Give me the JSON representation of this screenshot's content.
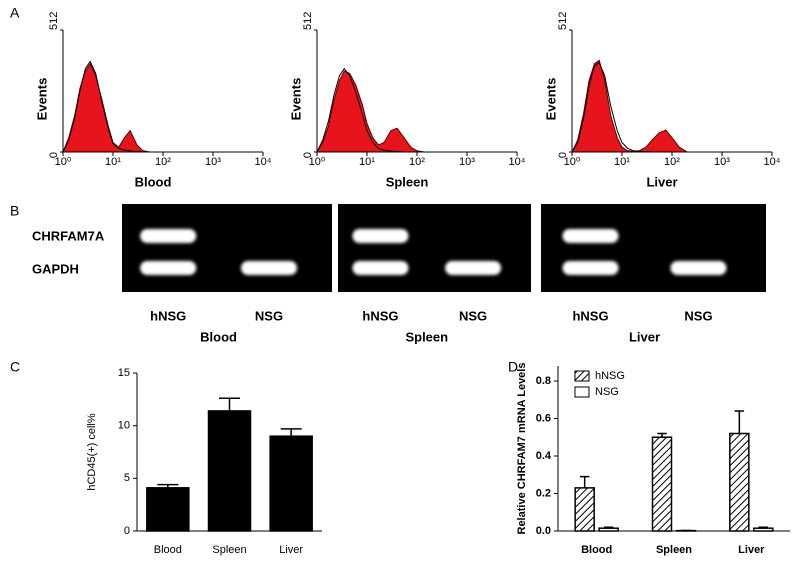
{
  "panel_labels": [
    "A",
    "B",
    "C",
    "D"
  ],
  "gel": {
    "rows": [
      "CHRFAM7A",
      "GAPDH"
    ],
    "panels": [
      {
        "tissue": "Blood",
        "lanes": [
          "hNSG",
          "NSG"
        ]
      },
      {
        "tissue": "Spleen",
        "lanes": [
          "hNSG",
          "NSG"
        ]
      },
      {
        "tissue": "Liver",
        "lanes": [
          "hNSG",
          "NSG"
        ]
      }
    ]
  },
  "chart_data": [
    {
      "type": "area",
      "xlabel": "Blood",
      "ylabel": "Events",
      "log_x": true,
      "x": [
        1,
        1.3,
        1.7,
        2.2,
        2.8,
        3.5,
        4.5,
        6,
        8,
        10,
        13,
        17,
        22,
        30,
        40,
        55,
        75,
        100,
        140,
        200
      ],
      "series": [
        {
          "color": "#5a0000",
          "fill": "#e8141b",
          "values": [
            0,
            60,
            150,
            270,
            340,
            370,
            320,
            220,
            110,
            40,
            20,
            60,
            90,
            30,
            5,
            0,
            0,
            0,
            0,
            0
          ]
        },
        {
          "color": "#000000",
          "fill": "none",
          "values": [
            0,
            50,
            140,
            260,
            350,
            380,
            330,
            210,
            100,
            35,
            15,
            8,
            4,
            2,
            0,
            0,
            0,
            0,
            0,
            0
          ]
        }
      ],
      "xlim": [
        1,
        10000
      ],
      "ylim": [
        0,
        512
      ],
      "xticks": [
        {
          "value": 1,
          "label": "10⁰"
        },
        {
          "value": 10,
          "label": "10¹"
        },
        {
          "value": 100,
          "label": "10²"
        },
        {
          "value": 1000,
          "label": "10³"
        },
        {
          "value": 10000,
          "label": "10⁴"
        }
      ],
      "yticks": [
        0,
        512
      ]
    },
    {
      "type": "area",
      "xlabel": "Spleen",
      "ylabel": "Events",
      "log_x": true,
      "x": [
        1,
        1.3,
        1.7,
        2.2,
        2.8,
        3.5,
        4.5,
        6,
        8,
        10,
        13,
        17,
        22,
        30,
        40,
        55,
        75,
        100,
        140,
        200
      ],
      "series": [
        {
          "color": "#5a0000",
          "fill": "#e8141b",
          "values": [
            0,
            40,
            110,
            220,
            300,
            340,
            330,
            280,
            200,
            120,
            60,
            30,
            40,
            90,
            100,
            60,
            20,
            5,
            0,
            0
          ]
        },
        {
          "color": "#000000",
          "fill": "none",
          "values": [
            0,
            50,
            130,
            240,
            320,
            350,
            320,
            250,
            160,
            90,
            40,
            15,
            8,
            4,
            2,
            0,
            0,
            0,
            0,
            0
          ]
        }
      ],
      "xlim": [
        1,
        10000
      ],
      "ylim": [
        0,
        512
      ],
      "xticks": [
        {
          "value": 1,
          "label": "10⁰"
        },
        {
          "value": 10,
          "label": "10¹"
        },
        {
          "value": 100,
          "label": "10²"
        },
        {
          "value": 1000,
          "label": "10³"
        },
        {
          "value": 10000,
          "label": "10⁴"
        }
      ],
      "yticks": [
        0,
        512
      ]
    },
    {
      "type": "area",
      "xlabel": "Liver",
      "ylabel": "Events",
      "log_x": true,
      "x": [
        1,
        1.3,
        1.7,
        2.2,
        2.8,
        3.5,
        4.5,
        6,
        8,
        10,
        13,
        17,
        22,
        30,
        40,
        55,
        75,
        100,
        140,
        200
      ],
      "series": [
        {
          "color": "#5a0000",
          "fill": "#e8141b",
          "values": [
            0,
            50,
            160,
            300,
            370,
            385,
            300,
            150,
            60,
            20,
            5,
            3,
            5,
            20,
            50,
            80,
            92,
            60,
            20,
            0
          ]
        },
        {
          "color": "#000000",
          "fill": "none",
          "values": [
            0,
            40,
            140,
            280,
            360,
            375,
            320,
            190,
            90,
            40,
            15,
            5,
            3,
            2,
            0,
            0,
            0,
            0,
            0,
            0
          ]
        }
      ],
      "xlim": [
        1,
        10000
      ],
      "ylim": [
        0,
        512
      ],
      "xticks": [
        {
          "value": 1,
          "label": "10⁰"
        },
        {
          "value": 10,
          "label": "10¹"
        },
        {
          "value": 100,
          "label": "10²"
        },
        {
          "value": 1000,
          "label": "10³"
        },
        {
          "value": 10000,
          "label": "10⁴"
        }
      ],
      "yticks": [
        0,
        512
      ]
    },
    {
      "type": "bar",
      "ylabel": "hCD45(+) cell%",
      "categories": [
        "Blood",
        "Spleen",
        "Liver"
      ],
      "values": [
        4.1,
        11.4,
        9.0
      ],
      "errors": [
        0.3,
        1.2,
        0.7
      ],
      "color": "#000000",
      "ylim": [
        0,
        15
      ],
      "yticks": [
        0,
        5,
        10,
        15
      ]
    },
    {
      "type": "bar",
      "ylabel": "Relative CHRFAM7 mRNA Levels",
      "categories": [
        "Blood",
        "Spleen",
        "Liver"
      ],
      "series": [
        {
          "name": "hNSG",
          "color": "#000000",
          "hatched": true,
          "values": [
            0.23,
            0.5,
            0.52
          ],
          "errors": [
            0.06,
            0.02,
            0.12
          ]
        },
        {
          "name": "NSG",
          "color": "#000000",
          "hatched": false,
          "values": [
            0.015,
            0.002,
            0.015
          ],
          "errors": [
            0.005,
            0.001,
            0.005
          ]
        }
      ],
      "legend": "upper left",
      "ylim": [
        0,
        0.88
      ],
      "yticks": [
        {
          "value": 0,
          "label": "0.0"
        },
        {
          "value": 0.2,
          "label": "0.2"
        },
        {
          "value": 0.4,
          "label": "0.4"
        },
        {
          "value": 0.6,
          "label": "0.6"
        },
        {
          "value": 0.8,
          "label": "0.8"
        }
      ]
    }
  ]
}
